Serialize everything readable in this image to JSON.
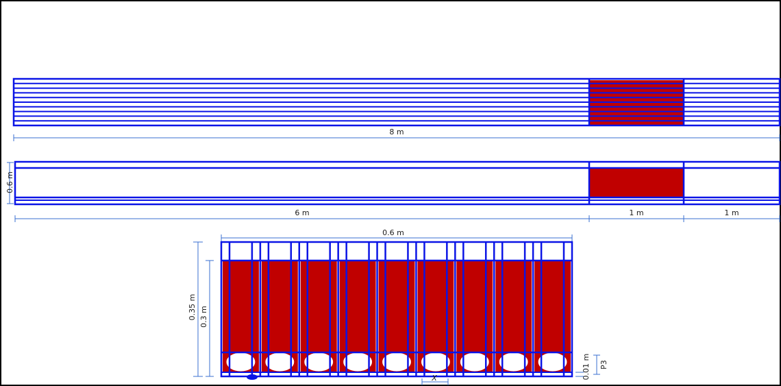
{
  "colors": {
    "structure": "#0a14e6",
    "fill_red": "#c00000",
    "dimension": "#3a6fd0",
    "border": "#000000",
    "background": "#ffffff"
  },
  "plan_view": {
    "length_label": "8 m",
    "strand_count": 10
  },
  "elevation_view": {
    "height_label": "0.6 m",
    "segment_labels": [
      "6 m",
      "1 m",
      "1 m"
    ]
  },
  "section_view": {
    "width_label": "0.6 m",
    "total_height_label": "0.35 m",
    "inner_height_label": "0.3 m",
    "gap_label": "0.01 m",
    "spacing_label": "X",
    "point_label": "P3",
    "cell_count": 9
  }
}
